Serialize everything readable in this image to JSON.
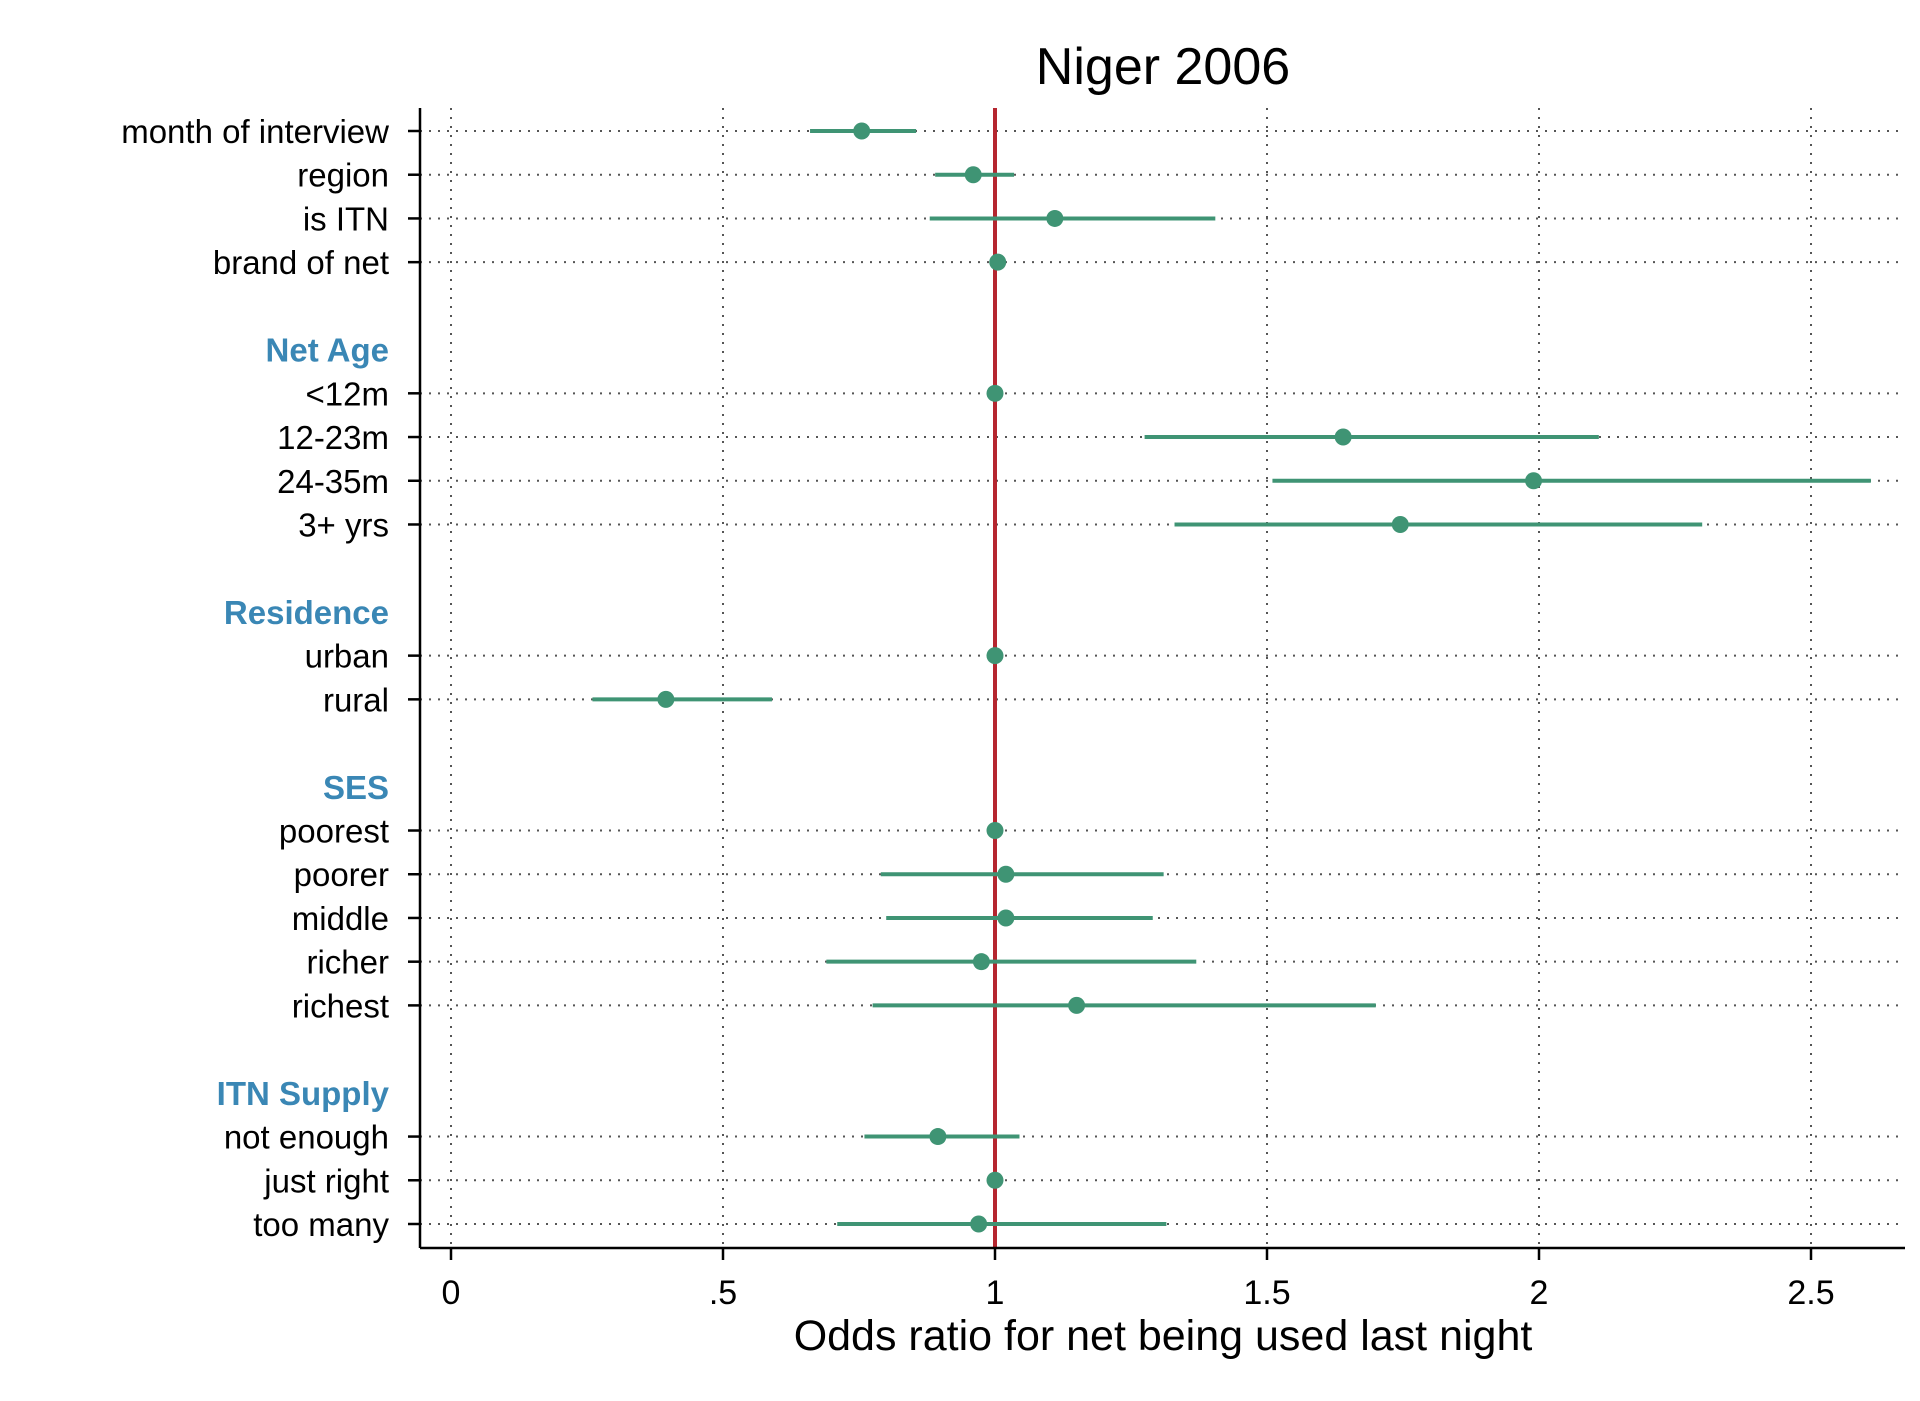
{
  "chart_data": {
    "type": "scatter",
    "subtype": "coefficient-plot",
    "title": "Niger 2006",
    "xlabel": "Odds ratio for net being used last night",
    "ylabel": "",
    "xlim": [
      -0.05,
      2.65
    ],
    "xticks": [
      {
        "value": 0,
        "label": "0"
      },
      {
        "value": 0.5,
        "label": ".5"
      },
      {
        "value": 1,
        "label": "1"
      },
      {
        "value": 1.5,
        "label": "1.5"
      },
      {
        "value": 2,
        "label": "2"
      },
      {
        "value": 2.5,
        "label": "2.5"
      }
    ],
    "reference_line": {
      "x": 1,
      "color": "#b5262f"
    },
    "grid": {
      "vertical": true,
      "horizontal": true,
      "style": "dotted"
    },
    "colors": {
      "marker": "#3f9474",
      "group_header": "#3a87b5",
      "axis": "#000000"
    },
    "rows": [
      {
        "label": "month of interview",
        "kind": "item",
        "estimate": 0.755,
        "lower": 0.66,
        "upper": 0.855
      },
      {
        "label": "region",
        "kind": "item",
        "estimate": 0.96,
        "lower": 0.89,
        "upper": 1.035
      },
      {
        "label": "is ITN",
        "kind": "item",
        "estimate": 1.11,
        "lower": 0.88,
        "upper": 1.405
      },
      {
        "label": "brand of net",
        "kind": "item",
        "estimate": 1.005
      },
      {
        "label": "",
        "kind": "gap"
      },
      {
        "label": "Net Age",
        "kind": "header"
      },
      {
        "label": "<12m",
        "kind": "item",
        "estimate": 1.0
      },
      {
        "label": "12-23m",
        "kind": "item",
        "estimate": 1.64,
        "lower": 1.275,
        "upper": 2.11
      },
      {
        "label": "24-35m",
        "kind": "item",
        "estimate": 1.99,
        "lower": 1.51,
        "upper": 2.61
      },
      {
        "label": "3+ yrs",
        "kind": "item",
        "estimate": 1.745,
        "lower": 1.33,
        "upper": 2.3
      },
      {
        "label": "",
        "kind": "gap"
      },
      {
        "label": "Residence",
        "kind": "header"
      },
      {
        "label": "urban",
        "kind": "item",
        "estimate": 1.0
      },
      {
        "label": "rural",
        "kind": "item",
        "estimate": 0.395,
        "lower": 0.26,
        "upper": 0.59
      },
      {
        "label": "",
        "kind": "gap"
      },
      {
        "label": "SES",
        "kind": "header"
      },
      {
        "label": "poorest",
        "kind": "item",
        "estimate": 1.0
      },
      {
        "label": "poorer",
        "kind": "item",
        "estimate": 1.02,
        "lower": 0.79,
        "upper": 1.31
      },
      {
        "label": "middle",
        "kind": "item",
        "estimate": 1.02,
        "lower": 0.8,
        "upper": 1.29
      },
      {
        "label": "richer",
        "kind": "item",
        "estimate": 0.975,
        "lower": 0.69,
        "upper": 1.37
      },
      {
        "label": "richest",
        "kind": "item",
        "estimate": 1.15,
        "lower": 0.775,
        "upper": 1.7
      },
      {
        "label": "",
        "kind": "gap"
      },
      {
        "label": "ITN Supply",
        "kind": "header"
      },
      {
        "label": "not enough",
        "kind": "item",
        "estimate": 0.895,
        "lower": 0.76,
        "upper": 1.045
      },
      {
        "label": "just right",
        "kind": "item",
        "estimate": 1.0
      },
      {
        "label": "too many",
        "kind": "item",
        "estimate": 0.97,
        "lower": 0.71,
        "upper": 1.315
      }
    ]
  }
}
